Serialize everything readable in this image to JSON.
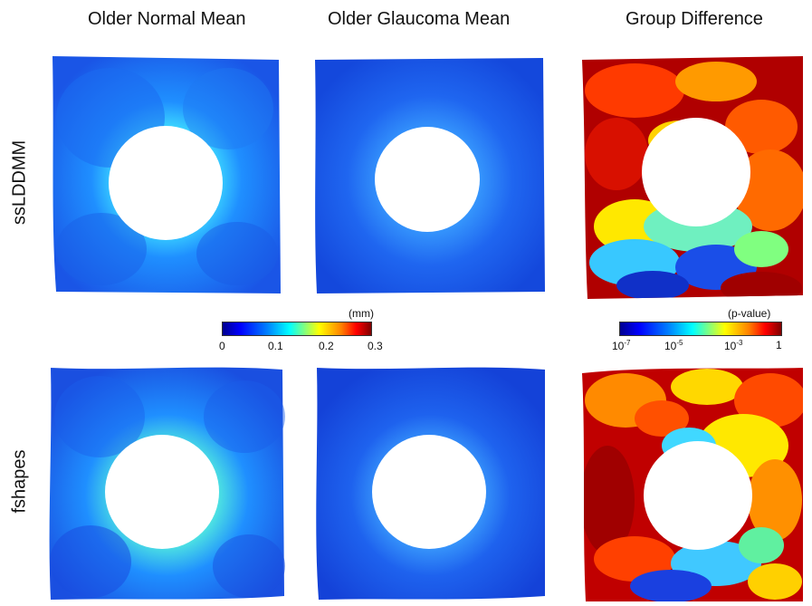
{
  "columns": {
    "normal": "Older Normal Mean",
    "glaucoma": "Older Glaucoma Mean",
    "difference": "Group Difference"
  },
  "rows": {
    "top": "ssLDDMM",
    "bottom": "fshapes"
  },
  "thickness_colorbar": {
    "unit": "(mm)",
    "ticks": [
      "0",
      "0.1",
      "0.2",
      "0.3"
    ],
    "range": [
      0,
      0.3
    ],
    "colormap": "jet"
  },
  "pvalue_colorbar": {
    "unit": "(p-value)",
    "ticks": [
      {
        "base": "10",
        "exp": "-7"
      },
      {
        "base": "10",
        "exp": "-5"
      },
      {
        "base": "10",
        "exp": "-3"
      },
      {
        "base": "1",
        "exp": ""
      }
    ],
    "scale": "log",
    "colormap": "jet"
  },
  "colors": {
    "jet_low": "#00008f",
    "jet_blue": "#0000ff",
    "jet_cyan": "#00ffff",
    "jet_yellow": "#ffff00",
    "jet_red": "#ff0000",
    "jet_high": "#800000"
  }
}
